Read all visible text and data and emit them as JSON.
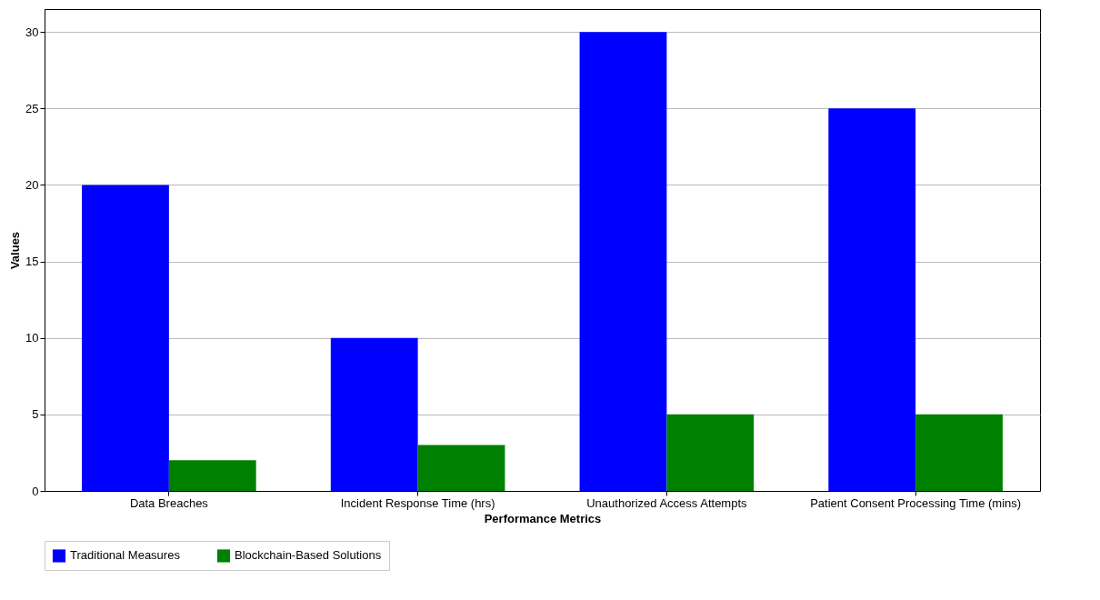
{
  "chart_data": {
    "type": "bar",
    "xlabel": "Performance Metrics",
    "ylabel": "Values",
    "categories": [
      "Data Breaches",
      "Incident Response Time (hrs)",
      "Unauthorized Access Attempts",
      "Patient Consent Processing Time (mins)"
    ],
    "series": [
      {
        "name": "Traditional Measures",
        "color": "#0000ff",
        "values": [
          20,
          10,
          30,
          25
        ]
      },
      {
        "name": "Blockchain-Based Solutions",
        "color": "#008000",
        "values": [
          2,
          3,
          5,
          5
        ]
      }
    ],
    "ylim": [
      0,
      31.5
    ],
    "yticks": [
      0,
      5,
      10,
      15,
      20,
      25,
      30
    ],
    "grid": "y",
    "legend": "bottom"
  }
}
